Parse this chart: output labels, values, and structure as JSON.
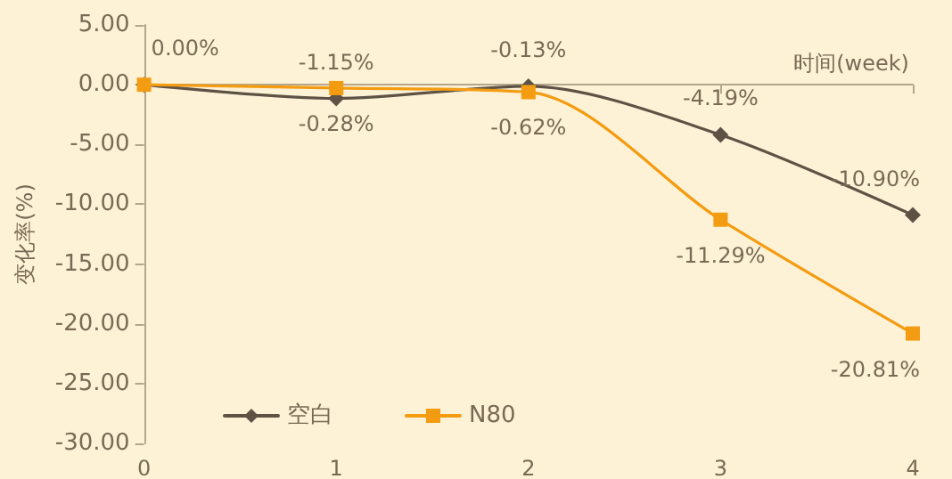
{
  "chart_data": {
    "type": "line",
    "xlabel": "时间(week)",
    "ylabel": "变化率(%)",
    "categories": [
      "0",
      "1",
      "2",
      "3",
      "4"
    ],
    "series": [
      {
        "name": "空白",
        "color": "#5e5245",
        "marker": "diamond",
        "values": [
          0.0,
          -1.15,
          -0.13,
          -4.19,
          -10.9
        ],
        "value_labels": [
          "0.00%",
          "-1.15%",
          "-0.13%",
          "-4.19%",
          "-10.90%"
        ]
      },
      {
        "name": "N80",
        "color": "#f39c12",
        "marker": "square",
        "values": [
          0.0,
          -0.28,
          -0.62,
          -11.29,
          -20.81
        ],
        "value_labels": [
          null,
          "-0.28%",
          "-0.62%",
          "-11.29%",
          "-20.81%"
        ]
      }
    ],
    "ylim": [
      -30,
      5
    ],
    "yticks": [
      {
        "value": -30,
        "label": "-30.00"
      },
      {
        "value": -25,
        "label": "-25.00"
      },
      {
        "value": -20,
        "label": "-20.00"
      },
      {
        "value": -15,
        "label": "-15.00"
      },
      {
        "value": -10,
        "label": "-10.00"
      },
      {
        "value": -5,
        "label": "-5.00"
      },
      {
        "value": 0,
        "label": "0.00"
      },
      {
        "value": 5,
        "label": "5.00"
      }
    ],
    "legend": "bottom left"
  }
}
